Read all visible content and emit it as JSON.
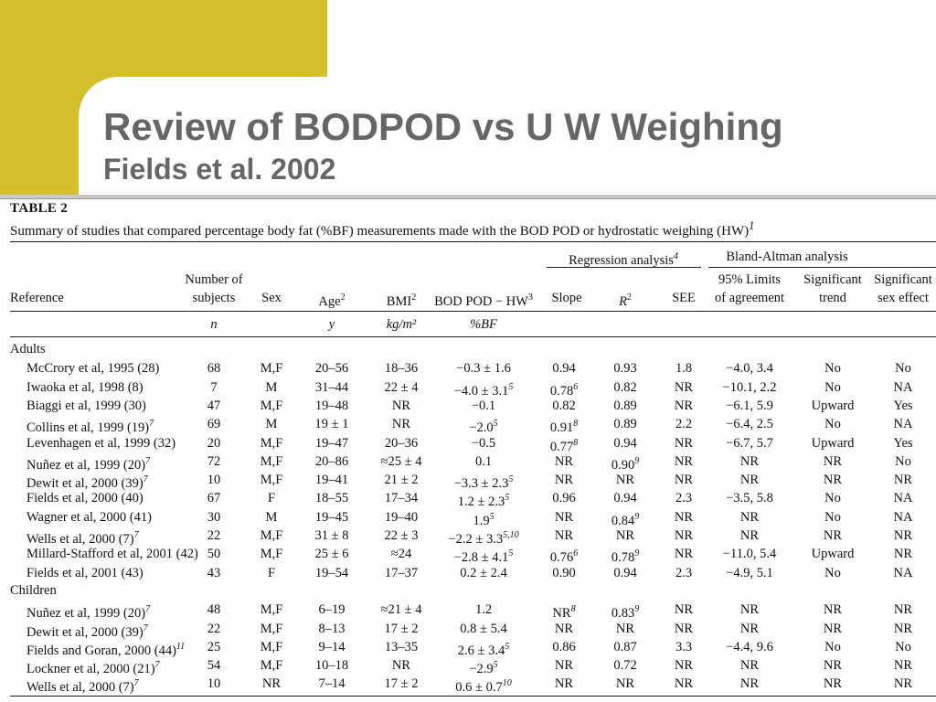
{
  "slide": {
    "title": "Review of BODPOD vs U W Weighing",
    "subtitle": "Fields et al. 2002"
  },
  "table": {
    "label": "TABLE 2",
    "caption": "Summary of studies that compared percentage body fat (%BF) measurements made with the BOD POD or hydrostatic weighing (HW)",
    "caption_sup": "1",
    "group_headers": {
      "regression": "Regression analysis",
      "regression_sup": "4",
      "bland_altman": "Bland-Altman analysis"
    },
    "headers": {
      "reference": "Reference",
      "n_line1": "Number of",
      "n_line2": "subjects",
      "sex": "Sex",
      "age": "Age",
      "age_sup": "2",
      "bmi": "BMI",
      "bmi_sup": "2",
      "diff": "BOD POD − HW",
      "diff_sup": "3",
      "slope": "Slope",
      "r2": "R",
      "r2_sup": "2",
      "see": "SEE",
      "limits_line1": "95% Limits",
      "limits_line2": "of agreement",
      "trend_line1": "Significant",
      "trend_line2": "trend",
      "sexeff_line1": "Significant",
      "sexeff_line2": "sex effect"
    },
    "units": {
      "n": "n",
      "age": "y",
      "bmi": "kg/m²",
      "diff": "%BF"
    },
    "sections": [
      {
        "name": "Adults",
        "rows": [
          {
            "ref": "McCrory et al, 1995 (28)",
            "ref_sup": "",
            "n": "68",
            "sex": "M,F",
            "age": "20–56",
            "bmi": "18–36",
            "diff": "−0.3 ± 1.6",
            "diff_sup": "",
            "slope": "0.94",
            "slope_sup": "",
            "r2": "0.93",
            "r2_sup": "",
            "see": "1.8",
            "limits": "−4.0, 3.4",
            "trend": "No",
            "sexeff": "No"
          },
          {
            "ref": "Iwaoka et al, 1998 (8)",
            "ref_sup": "",
            "n": "7",
            "sex": "M",
            "age": "31–44",
            "bmi": "22 ± 4",
            "diff": "−4.0 ± 3.1",
            "diff_sup": "5",
            "slope": "0.78",
            "slope_sup": "6",
            "r2": "0.82",
            "r2_sup": "",
            "see": "NR",
            "limits": "−10.1, 2.2",
            "trend": "No",
            "sexeff": "NA"
          },
          {
            "ref": "Biaggi et al, 1999 (30)",
            "ref_sup": "",
            "n": "47",
            "sex": "M,F",
            "age": "19–48",
            "bmi": "NR",
            "diff": "−0.1",
            "diff_sup": "",
            "slope": "0.82",
            "slope_sup": "",
            "r2": "0.89",
            "r2_sup": "",
            "see": "NR",
            "limits": "−6.1, 5.9",
            "trend": "Upward",
            "sexeff": "Yes"
          },
          {
            "ref": "Collins et al, 1999 (19)",
            "ref_sup": "7",
            "n": "69",
            "sex": "M",
            "age": "19 ± 1",
            "bmi": "NR",
            "diff": "−2.0",
            "diff_sup": "5",
            "slope": "0.91",
            "slope_sup": "8",
            "r2": "0.89",
            "r2_sup": "",
            "see": "2.2",
            "limits": "−6.4, 2.5",
            "trend": "No",
            "sexeff": "NA"
          },
          {
            "ref": "Levenhagen et al, 1999 (32)",
            "ref_sup": "",
            "n": "20",
            "sex": "M,F",
            "age": "19–47",
            "bmi": "20–36",
            "diff": "−0.5",
            "diff_sup": "",
            "slope": "0.77",
            "slope_sup": "8",
            "r2": "0.94",
            "r2_sup": "",
            "see": "NR",
            "limits": "−6.7, 5.7",
            "trend": "Upward",
            "sexeff": "Yes"
          },
          {
            "ref": "Nuñez et al, 1999 (20)",
            "ref_sup": "7",
            "n": "72",
            "sex": "M,F",
            "age": "20–86",
            "bmi": "≈25 ± 4",
            "diff": "0.1",
            "diff_sup": "",
            "slope": "NR",
            "slope_sup": "",
            "r2": "0.90",
            "r2_sup": "9",
            "see": "NR",
            "limits": "NR",
            "trend": "NR",
            "sexeff": "No"
          },
          {
            "ref": "Dewit et al, 2000 (39)",
            "ref_sup": "7",
            "n": "10",
            "sex": "M,F",
            "age": "19–41",
            "bmi": "21 ± 2",
            "diff": "−3.3 ± 2.3",
            "diff_sup": "5",
            "slope": "NR",
            "slope_sup": "",
            "r2": "NR",
            "r2_sup": "",
            "see": "NR",
            "limits": "NR",
            "trend": "NR",
            "sexeff": "NR"
          },
          {
            "ref": "Fields et al, 2000 (40)",
            "ref_sup": "",
            "n": "67",
            "sex": "F",
            "age": "18–55",
            "bmi": "17–34",
            "diff": "1.2 ± 2.3",
            "diff_sup": "5",
            "slope": "0.96",
            "slope_sup": "",
            "r2": "0.94",
            "r2_sup": "",
            "see": "2.3",
            "limits": "−3.5, 5.8",
            "trend": "No",
            "sexeff": "NA"
          },
          {
            "ref": "Wagner et al, 2000 (41)",
            "ref_sup": "",
            "n": "30",
            "sex": "M",
            "age": "19–45",
            "bmi": "19–40",
            "diff": "1.9",
            "diff_sup": "5",
            "slope": "NR",
            "slope_sup": "",
            "r2": "0.84",
            "r2_sup": "9",
            "see": "NR",
            "limits": "NR",
            "trend": "No",
            "sexeff": "NA"
          },
          {
            "ref": "Wells et al, 2000 (7)",
            "ref_sup": "7",
            "n": "22",
            "sex": "M,F",
            "age": "31 ± 8",
            "bmi": "22 ± 3",
            "diff": "−2.2 ± 3.3",
            "diff_sup": "5,10",
            "slope": "NR",
            "slope_sup": "",
            "r2": "NR",
            "r2_sup": "",
            "see": "NR",
            "limits": "NR",
            "trend": "NR",
            "sexeff": "NR"
          },
          {
            "ref": "Millard-Stafford et al, 2001 (42)",
            "ref_sup": "",
            "n": "50",
            "sex": "M,F",
            "age": "25 ± 6",
            "bmi": "≈24",
            "diff": "−2.8 ± 4.1",
            "diff_sup": "5",
            "slope": "0.76",
            "slope_sup": "6",
            "r2": "0.78",
            "r2_sup": "9",
            "see": "NR",
            "limits": "−11.0, 5.4",
            "trend": "Upward",
            "sexeff": "NR"
          },
          {
            "ref": "Fields et al, 2001 (43)",
            "ref_sup": "",
            "n": "43",
            "sex": "F",
            "age": "19–54",
            "bmi": "17–37",
            "diff": "0.2 ± 2.4",
            "diff_sup": "",
            "slope": "0.90",
            "slope_sup": "",
            "r2": "0.94",
            "r2_sup": "",
            "see": "2.3",
            "limits": "−4.9, 5.1",
            "trend": "No",
            "sexeff": "NA"
          }
        ]
      },
      {
        "name": "Children",
        "rows": [
          {
            "ref": "Nuñez et al, 1999 (20)",
            "ref_sup": "7",
            "n": "48",
            "sex": "M,F",
            "age": "6–19",
            "bmi": "≈21 ± 4",
            "diff": "1.2",
            "diff_sup": "",
            "slope": "NR",
            "slope_sup": "8",
            "r2": "0.83",
            "r2_sup": "9",
            "see": "NR",
            "limits": "NR",
            "trend": "NR",
            "sexeff": "NR"
          },
          {
            "ref": "Dewit et al, 2000 (39)",
            "ref_sup": "7",
            "n": "22",
            "sex": "M,F",
            "age": "8–13",
            "bmi": "17 ± 2",
            "diff": "0.8 ± 5.4",
            "diff_sup": "",
            "slope": "NR",
            "slope_sup": "",
            "r2": "NR",
            "r2_sup": "",
            "see": "NR",
            "limits": "NR",
            "trend": "NR",
            "sexeff": "NR"
          },
          {
            "ref": "Fields and Goran, 2000 (44)",
            "ref_sup": "11",
            "n": "25",
            "sex": "M,F",
            "age": "9–14",
            "bmi": "13–35",
            "diff": "2.6 ± 3.4",
            "diff_sup": "5",
            "slope": "0.86",
            "slope_sup": "",
            "r2": "0.87",
            "r2_sup": "",
            "see": "3.3",
            "limits": "−4.4, 9.6",
            "trend": "No",
            "sexeff": "No"
          },
          {
            "ref": "Lockner et al, 2000 (21)",
            "ref_sup": "7",
            "n": "54",
            "sex": "M,F",
            "age": "10–18",
            "bmi": "NR",
            "diff": "−2.9",
            "diff_sup": "5",
            "slope": "NR",
            "slope_sup": "",
            "r2": "0.72",
            "r2_sup": "",
            "see": "NR",
            "limits": "NR",
            "trend": "NR",
            "sexeff": "NR"
          },
          {
            "ref": "Wells et al, 2000 (7)",
            "ref_sup": "7",
            "n": "10",
            "sex": "NR",
            "age": "7–14",
            "bmi": "17 ± 2",
            "diff": "0.6 ± 0.7",
            "diff_sup": "10",
            "slope": "NR",
            "slope_sup": "",
            "r2": "NR",
            "r2_sup": "",
            "see": "NR",
            "limits": "NR",
            "trend": "NR",
            "sexeff": "NR"
          }
        ]
      }
    ]
  }
}
